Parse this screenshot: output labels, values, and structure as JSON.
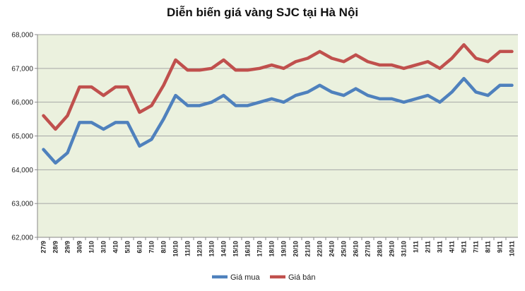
{
  "chart_data": {
    "type": "line",
    "title": "Diễn biến giá vàng SJC tại Hà Nội",
    "xlabel": "",
    "ylabel": "",
    "ylim": [
      62000,
      68000
    ],
    "yticks": [
      "62,000",
      "63,000",
      "64,000",
      "65,000",
      "66,000",
      "67,000",
      "68,000"
    ],
    "grid": true,
    "legend": "bottom",
    "colors": {
      "plot_bg": "#ebf1de",
      "grid": "#a6a6a6"
    },
    "categories": [
      "27/9",
      "28/9",
      "29/9",
      "30/9",
      "1/10",
      "3/10",
      "4/10",
      "5/10",
      "6/10",
      "7/10",
      "8/10",
      "10/10",
      "11/10",
      "12/10",
      "13/10",
      "14/10",
      "15/10",
      "16/10",
      "17/10",
      "18/10",
      "19/10",
      "20/10",
      "21/10",
      "22/10",
      "24/10",
      "25/10",
      "26/10",
      "27/10",
      "28/10",
      "29/10",
      "31/10",
      "1/11",
      "2/11",
      "3/11",
      "4/11",
      "5/11",
      "7/11",
      "8/11",
      "9/11",
      "10/11"
    ],
    "series": [
      {
        "name": "Giá mua",
        "color": "#4f81bd",
        "values": [
          64600,
          64200,
          64500,
          65400,
          65400,
          65200,
          65400,
          65400,
          64700,
          64900,
          65500,
          66200,
          65900,
          65900,
          66000,
          66200,
          65900,
          65900,
          66000,
          66100,
          66000,
          66200,
          66300,
          66500,
          66300,
          66200,
          66400,
          66200,
          66100,
          66100,
          66000,
          66100,
          66200,
          66000,
          66300,
          66700,
          66300,
          66200,
          66500,
          66500
        ]
      },
      {
        "name": "Giá bán",
        "color": "#c0504d",
        "values": [
          65600,
          65200,
          65600,
          66450,
          66450,
          66200,
          66450,
          66450,
          65700,
          65900,
          66500,
          67250,
          66950,
          66950,
          67000,
          67250,
          66950,
          66950,
          67000,
          67100,
          67000,
          67200,
          67300,
          67500,
          67300,
          67200,
          67400,
          67200,
          67100,
          67100,
          67000,
          67100,
          67200,
          67000,
          67300,
          67700,
          67300,
          67200,
          67500,
          67500
        ]
      }
    ]
  }
}
